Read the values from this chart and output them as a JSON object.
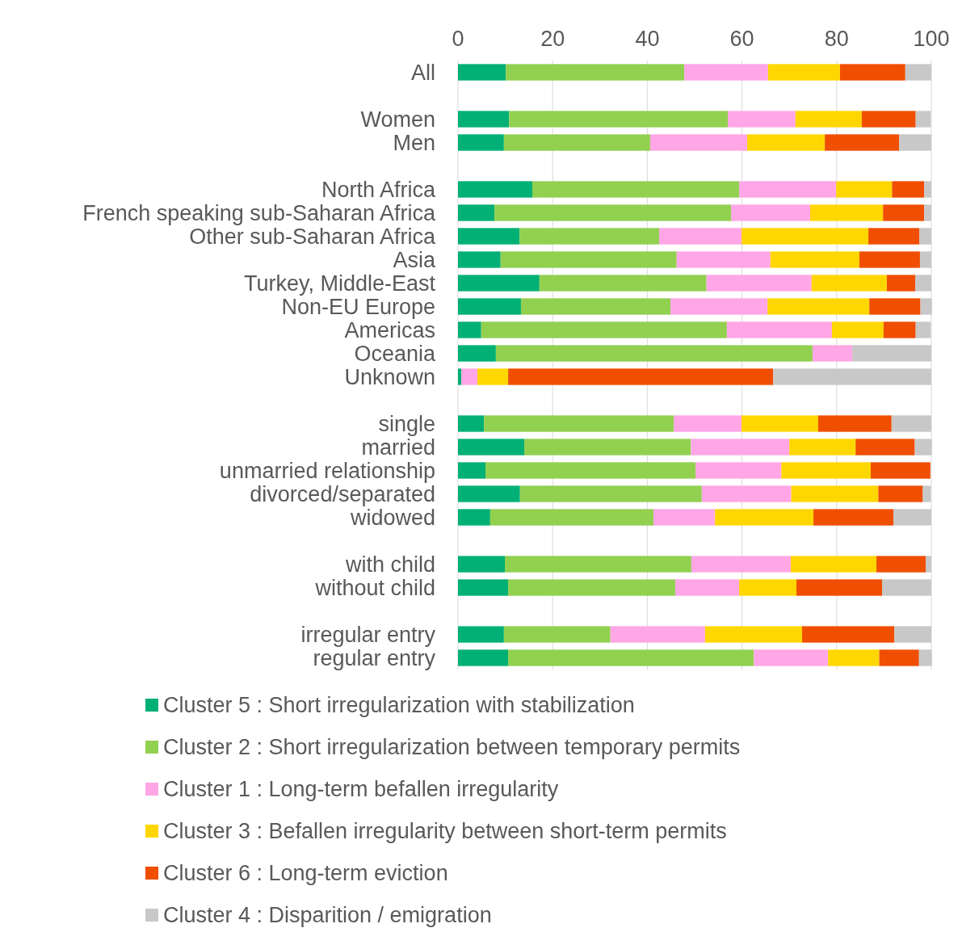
{
  "chart_data": {
    "type": "bar",
    "orientation": "horizontal",
    "stacked": true,
    "grid": "x",
    "legend": "bottom",
    "xlim": [
      0,
      100
    ],
    "xticks": [
      0,
      20,
      40,
      60,
      80,
      100
    ],
    "categories": [
      "All",
      null,
      "Women",
      "Men",
      null,
      "North Africa",
      "French speaking sub-Saharan Africa",
      "Other sub-Saharan Africa",
      "Asia",
      "Turkey, Middle-East",
      "Non-EU Europe",
      "Americas",
      "Oceania",
      "Unknown",
      null,
      "single",
      "married",
      "unmarried relationship",
      "divorced/separated",
      "widowed",
      null,
      "with child",
      "without child",
      null,
      "irregular entry",
      "regular entry"
    ],
    "series": [
      {
        "name": "Cluster 5 : Short irregularization with stabilization",
        "color": "#00b075",
        "values": [
          10.1,
          null,
          10.8,
          9.7,
          null,
          15.7,
          7.7,
          13.0,
          9.0,
          17.2,
          13.3,
          4.9,
          8.0,
          0.7,
          null,
          5.5,
          14.0,
          5.8,
          13.1,
          6.8,
          null,
          9.9,
          10.6,
          null,
          9.7,
          10.6
        ]
      },
      {
        "name": "Cluster 2 : Short irregularization between temporary permits",
        "color": "#92d050",
        "values": [
          37.7,
          null,
          46.2,
          30.9,
          null,
          43.7,
          50.0,
          29.5,
          37.2,
          35.3,
          31.6,
          51.9,
          66.9,
          0,
          null,
          40.1,
          35.2,
          44.4,
          38.4,
          34.5,
          null,
          39.4,
          35.3,
          null,
          22.5,
          51.9
        ]
      },
      {
        "name": "Cluster 1 : Long-term befallen irregularity",
        "color": "#ffa6e6",
        "values": [
          17.7,
          null,
          14.3,
          20.5,
          null,
          20.5,
          16.7,
          17.4,
          19.8,
          22.2,
          20.5,
          22.2,
          8.4,
          3.4,
          null,
          14.3,
          20.8,
          18.1,
          18.9,
          13.0,
          null,
          21.0,
          13.5,
          null,
          20.0,
          15.7
        ]
      },
      {
        "name": "Cluster 3 : Befallen irregularity between short-term permits",
        "color": "#ffd700",
        "values": [
          15.2,
          null,
          14.0,
          16.4,
          null,
          11.8,
          15.4,
          26.8,
          18.8,
          15.9,
          21.5,
          10.9,
          0,
          6.5,
          null,
          16.2,
          14.0,
          18.9,
          18.4,
          20.8,
          null,
          18.1,
          12.1,
          null,
          20.5,
          10.8
        ]
      },
      {
        "name": "Cluster 6 : Long-term eviction",
        "color": "#f04e00",
        "values": [
          13.8,
          null,
          11.4,
          15.7,
          null,
          6.8,
          8.7,
          10.8,
          12.8,
          6.0,
          10.8,
          6.8,
          0,
          56.0,
          null,
          15.5,
          12.5,
          12.6,
          9.4,
          16.9,
          null,
          10.4,
          18.1,
          null,
          19.5,
          8.4
        ]
      },
      {
        "name": "Cluster 4 : Disparition / emigration",
        "color": "#c8c8c8",
        "values": [
          5.5,
          null,
          3.2,
          6.8,
          null,
          1.5,
          1.5,
          2.5,
          2.4,
          3.4,
          2.4,
          3.2,
          16.7,
          33.4,
          null,
          8.4,
          3.6,
          0,
          1.7,
          8.0,
          null,
          1.2,
          10.4,
          null,
          7.8,
          2.7
        ]
      }
    ]
  }
}
